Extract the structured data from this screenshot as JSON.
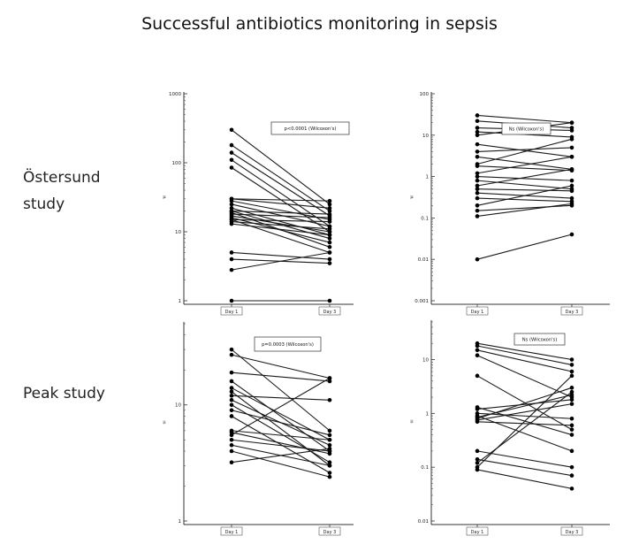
{
  "slide": {
    "title": "Successful antibiotics monitoring in sepsis",
    "row_labels": [
      "Östersund study",
      "Peak study"
    ]
  },
  "chart_data": [
    {
      "type": "line",
      "y_scale": "log",
      "ylim": [
        1,
        1000
      ],
      "y_ticks": [
        1,
        10,
        100,
        1000
      ],
      "y_tick_labels": [
        "1",
        "10",
        "100",
        "1000"
      ],
      "ylabel": "µ",
      "categories": [
        "Day 1",
        "Day 3"
      ],
      "annotation": "p<0.0001 (Wilcoxon's)",
      "pairs": [
        [
          300,
          25
        ],
        [
          180,
          20
        ],
        [
          140,
          17
        ],
        [
          110,
          12
        ],
        [
          85,
          10
        ],
        [
          30,
          28
        ],
        [
          30,
          22
        ],
        [
          28,
          15
        ],
        [
          25,
          12
        ],
        [
          22,
          9
        ],
        [
          20,
          18
        ],
        [
          20,
          8
        ],
        [
          19,
          6
        ],
        [
          18,
          16
        ],
        [
          17,
          10
        ],
        [
          16,
          7
        ],
        [
          15,
          14
        ],
        [
          15,
          5
        ],
        [
          14,
          11
        ],
        [
          13,
          9
        ],
        [
          5,
          4
        ],
        [
          4,
          3.5
        ],
        [
          2.8,
          5
        ],
        [
          1,
          1
        ]
      ]
    },
    {
      "type": "line",
      "y_scale": "log",
      "ylim": [
        0.001,
        100
      ],
      "y_ticks": [
        0.001,
        0.01,
        0.1,
        1,
        10,
        100
      ],
      "y_tick_labels": [
        "0.001",
        "0.01",
        "0.1",
        "1",
        "10",
        "100"
      ],
      "ylabel": "µ",
      "categories": [
        "Day 1",
        "Day 3"
      ],
      "annotation": "Ns (Wilcoxon's)",
      "pairs": [
        [
          30,
          20
        ],
        [
          22,
          15
        ],
        [
          15,
          13
        ],
        [
          12,
          9
        ],
        [
          10,
          20
        ],
        [
          6,
          3
        ],
        [
          4,
          5
        ],
        [
          3,
          1.5
        ],
        [
          2,
          8
        ],
        [
          1.8,
          1.4
        ],
        [
          1.2,
          3
        ],
        [
          1,
          0.8
        ],
        [
          0.8,
          0.5
        ],
        [
          0.6,
          1.5
        ],
        [
          0.5,
          0.45
        ],
        [
          0.4,
          0.3
        ],
        [
          0.3,
          0.25
        ],
        [
          0.2,
          0.6
        ],
        [
          0.15,
          0.2
        ],
        [
          0.11,
          0.22
        ],
        [
          0.01,
          0.04
        ]
      ]
    },
    {
      "type": "line",
      "y_scale": "log",
      "ylim": [
        1,
        50
      ],
      "y_ticks": [
        1,
        10
      ],
      "y_tick_labels": [
        "1",
        "10"
      ],
      "ylabel": "µ",
      "categories": [
        "Day 1",
        "Day 3"
      ],
      "annotation": "p=0.0003 (Wilcoxon's)",
      "pairs": [
        [
          30,
          6
        ],
        [
          27,
          17
        ],
        [
          19,
          16
        ],
        [
          16,
          4
        ],
        [
          14,
          5
        ],
        [
          13,
          3
        ],
        [
          12,
          11
        ],
        [
          11,
          4.5
        ],
        [
          10,
          3.2
        ],
        [
          9,
          5.5
        ],
        [
          8,
          2.6
        ],
        [
          6,
          5
        ],
        [
          5.8,
          3.8
        ],
        [
          5.5,
          17
        ],
        [
          5,
          4
        ],
        [
          4.5,
          3
        ],
        [
          4,
          2.4
        ],
        [
          3.2,
          4.2
        ]
      ]
    },
    {
      "type": "line",
      "y_scale": "log",
      "ylim": [
        0.01,
        50
      ],
      "y_ticks": [
        0.01,
        0.1,
        1,
        10
      ],
      "y_tick_labels": [
        "0.01",
        "0.1",
        "1",
        "10"
      ],
      "ylabel": "µ",
      "categories": [
        "Day 1",
        "Day 3"
      ],
      "annotation": "Ns (Wilcoxon's)",
      "pairs": [
        [
          20,
          10
        ],
        [
          18,
          8
        ],
        [
          15,
          6
        ],
        [
          12,
          2
        ],
        [
          5,
          0.5
        ],
        [
          1.3,
          0.4
        ],
        [
          1.2,
          1.8
        ],
        [
          1,
          0.8
        ],
        [
          0.9,
          0.2
        ],
        [
          0.85,
          2.2
        ],
        [
          0.8,
          3
        ],
        [
          0.75,
          1.5
        ],
        [
          0.7,
          0.6
        ],
        [
          0.2,
          0.1
        ],
        [
          0.14,
          0.07
        ],
        [
          0.12,
          2.5
        ],
        [
          0.1,
          5
        ],
        [
          0.09,
          0.04
        ]
      ]
    }
  ]
}
